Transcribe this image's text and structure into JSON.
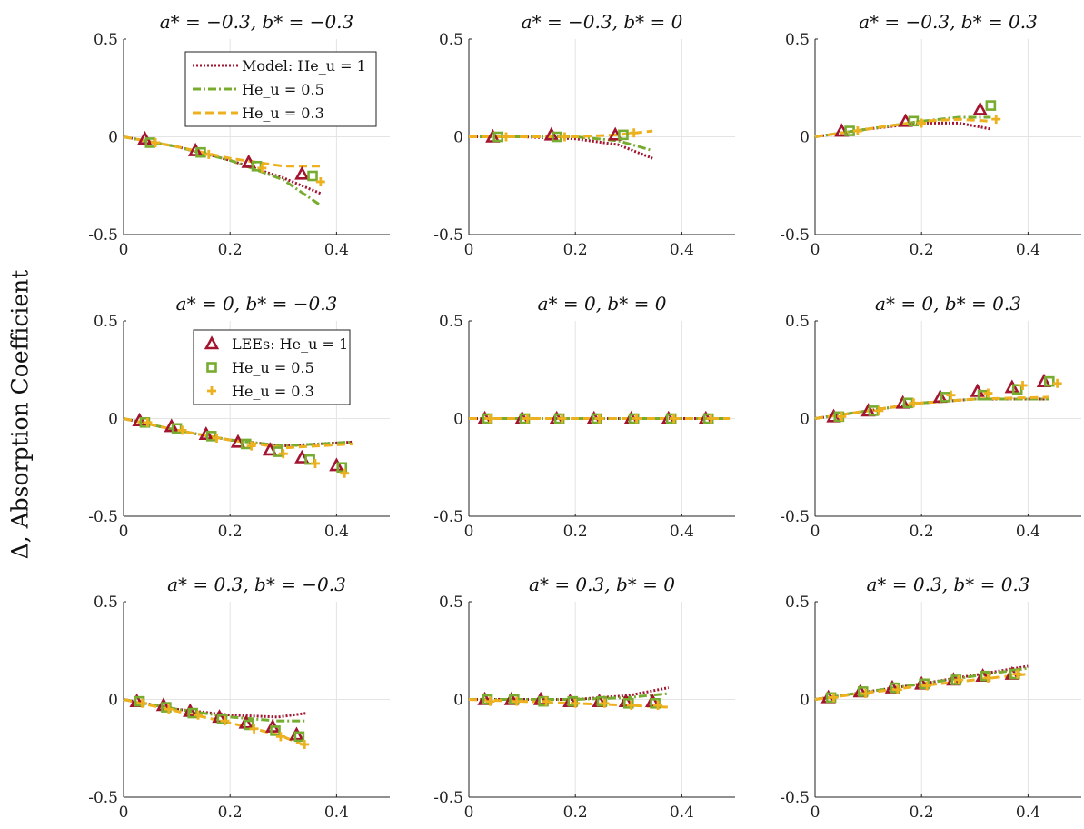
{
  "ylabel": "Δ, Absorption Coefficient",
  "legends": {
    "model": [
      "Model: He_u = 1",
      "He_u = 0.5",
      "He_u = 0.3"
    ],
    "lees": [
      "LEEs: He_u = 1",
      "He_u = 0.5",
      "He_u = 0.3"
    ]
  },
  "colors": {
    "he1": "#a2142f",
    "he05": "#77ac30",
    "he03": "#edb120"
  },
  "chart_data": [
    {
      "type": "line",
      "title": "a* = −0.3, b* = −0.3",
      "xlim": [
        0,
        0.5
      ],
      "ylim": [
        -0.5,
        0.5
      ],
      "xticks": [
        "0",
        "0.2",
        "0.4"
      ],
      "yticks": [
        "0.5",
        "0",
        "-0.5"
      ],
      "grid": true,
      "model": [
        {
          "name": "Model: He_u = 1",
          "x": [
            0,
            0.1,
            0.2,
            0.3,
            0.37
          ],
          "y": [
            0,
            -0.05,
            -0.12,
            -0.21,
            -0.29
          ]
        },
        {
          "name": "He_u = 0.5",
          "x": [
            0,
            0.1,
            0.2,
            0.3,
            0.37
          ],
          "y": [
            0,
            -0.05,
            -0.12,
            -0.22,
            -0.35
          ]
        },
        {
          "name": "He_u = 0.3",
          "x": [
            0,
            0.1,
            0.2,
            0.3,
            0.37
          ],
          "y": [
            0,
            -0.05,
            -0.11,
            -0.15,
            -0.15
          ]
        }
      ],
      "lees": [
        {
          "name": "LEEs: He_u = 1",
          "x": [
            0.04,
            0.135,
            0.235,
            0.335
          ],
          "y": [
            -0.01,
            -0.07,
            -0.13,
            -0.19
          ]
        },
        {
          "name": "He_u = 0.5",
          "x": [
            0.05,
            0.145,
            0.25,
            0.355
          ],
          "y": [
            -0.03,
            -0.08,
            -0.15,
            -0.2
          ]
        },
        {
          "name": "He_u = 0.3",
          "x": [
            0.06,
            0.16,
            0.26,
            0.37
          ],
          "y": [
            -0.03,
            -0.09,
            -0.16,
            -0.23
          ]
        }
      ]
    },
    {
      "type": "line",
      "title": "a* = −0.3, b* = 0",
      "xlim": [
        0,
        0.5
      ],
      "ylim": [
        -0.5,
        0.5
      ],
      "xticks": [
        "0",
        "0.2",
        "0.4"
      ],
      "yticks": [
        "0.5",
        "0",
        "-0.5"
      ],
      "grid": true,
      "model": [
        {
          "name": "Model: He_u = 1",
          "x": [
            0,
            0.1,
            0.2,
            0.28,
            0.345
          ],
          "y": [
            0,
            0,
            -0.01,
            -0.04,
            -0.11
          ]
        },
        {
          "name": "He_u = 0.5",
          "x": [
            0,
            0.1,
            0.2,
            0.28,
            0.345
          ],
          "y": [
            0,
            0,
            0,
            -0.02,
            -0.07
          ]
        },
        {
          "name": "He_u = 0.3",
          "x": [
            0,
            0.1,
            0.2,
            0.28,
            0.345
          ],
          "y": [
            0,
            0,
            0,
            0.01,
            0.03
          ]
        }
      ],
      "lees": [
        {
          "name": "LEEs: He_u = 1",
          "x": [
            0.045,
            0.155,
            0.275
          ],
          "y": [
            0,
            0.01,
            0.01
          ]
        },
        {
          "name": "He_u = 0.5",
          "x": [
            0.055,
            0.165,
            0.29
          ],
          "y": [
            0,
            0,
            0.01
          ]
        },
        {
          "name": "He_u = 0.3",
          "x": [
            0.07,
            0.18,
            0.31
          ],
          "y": [
            0,
            0,
            0.02
          ]
        }
      ]
    },
    {
      "type": "line",
      "title": "a* = −0.3, b* = 0.3",
      "xlim": [
        0,
        0.5
      ],
      "ylim": [
        -0.5,
        0.5
      ],
      "xticks": [
        "0",
        "0.2",
        "0.4"
      ],
      "yticks": [
        "0.5",
        "0",
        "-0.5"
      ],
      "grid": true,
      "model": [
        {
          "name": "Model: He_u = 1",
          "x": [
            0,
            0.1,
            0.2,
            0.27,
            0.33
          ],
          "y": [
            0,
            0.04,
            0.07,
            0.07,
            0.04
          ]
        },
        {
          "name": "He_u = 0.5",
          "x": [
            0,
            0.1,
            0.2,
            0.27,
            0.33
          ],
          "y": [
            0,
            0.04,
            0.08,
            0.1,
            0.1
          ]
        },
        {
          "name": "He_u = 0.3",
          "x": [
            0,
            0.1,
            0.2,
            0.27,
            0.33
          ],
          "y": [
            0,
            0.04,
            0.08,
            0.09,
            0.08
          ]
        }
      ],
      "lees": [
        {
          "name": "LEEs: He_u = 1",
          "x": [
            0.05,
            0.17,
            0.31
          ],
          "y": [
            0.03,
            0.08,
            0.14
          ]
        },
        {
          "name": "He_u = 0.5",
          "x": [
            0.065,
            0.185,
            0.33
          ],
          "y": [
            0.03,
            0.08,
            0.16
          ]
        },
        {
          "name": "He_u = 0.3",
          "x": [
            0.08,
            0.2,
            0.34
          ],
          "y": [
            0.03,
            0.07,
            0.09
          ]
        }
      ]
    },
    {
      "type": "line",
      "title": "a* = 0, b* = −0.3",
      "xlim": [
        0,
        0.5
      ],
      "ylim": [
        -0.5,
        0.5
      ],
      "xticks": [
        "0",
        "0.2",
        "0.4"
      ],
      "yticks": [
        "0.5",
        "0",
        "-0.5"
      ],
      "grid": true,
      "model": [
        {
          "name": "Model: He_u = 1",
          "x": [
            0,
            0.1,
            0.2,
            0.3,
            0.43
          ],
          "y": [
            0,
            -0.06,
            -0.11,
            -0.14,
            -0.12
          ]
        },
        {
          "name": "He_u = 0.5",
          "x": [
            0,
            0.1,
            0.2,
            0.3,
            0.43
          ],
          "y": [
            0,
            -0.06,
            -0.11,
            -0.14,
            -0.12
          ]
        },
        {
          "name": "He_u = 0.3",
          "x": [
            0,
            0.1,
            0.2,
            0.3,
            0.43
          ],
          "y": [
            0,
            -0.06,
            -0.11,
            -0.15,
            -0.13
          ]
        }
      ],
      "lees": [
        {
          "name": "LEEs: He_u = 1",
          "x": [
            0.03,
            0.09,
            0.155,
            0.215,
            0.275,
            0.335,
            0.4
          ],
          "y": [
            -0.01,
            -0.04,
            -0.08,
            -0.12,
            -0.16,
            -0.2,
            -0.24
          ]
        },
        {
          "name": "He_u = 0.5",
          "x": [
            0.04,
            0.1,
            0.165,
            0.23,
            0.29,
            0.35,
            0.41
          ],
          "y": [
            -0.02,
            -0.05,
            -0.09,
            -0.13,
            -0.17,
            -0.21,
            -0.25
          ]
        },
        {
          "name": "He_u = 0.3",
          "x": [
            0.045,
            0.11,
            0.175,
            0.24,
            0.3,
            0.36,
            0.415
          ],
          "y": [
            -0.02,
            -0.06,
            -0.1,
            -0.14,
            -0.18,
            -0.23,
            -0.28
          ]
        }
      ]
    },
    {
      "type": "line",
      "title": "a* = 0, b* = 0",
      "xlim": [
        0,
        0.5
      ],
      "ylim": [
        -0.5,
        0.5
      ],
      "xticks": [
        "0",
        "0.2",
        "0.4"
      ],
      "yticks": [
        "0.5",
        "0",
        "-0.5"
      ],
      "grid": true,
      "model": [
        {
          "name": "Model: He_u = 1",
          "x": [
            0,
            0.49
          ],
          "y": [
            0,
            0
          ]
        },
        {
          "name": "He_u = 0.5",
          "x": [
            0,
            0.49
          ],
          "y": [
            0,
            0
          ]
        },
        {
          "name": "He_u = 0.3",
          "x": [
            0,
            0.49
          ],
          "y": [
            0,
            0
          ]
        }
      ],
      "lees": [
        {
          "name": "LEEs: He_u = 1",
          "x": [
            0.03,
            0.1,
            0.165,
            0.235,
            0.305,
            0.375,
            0.445
          ],
          "y": [
            0,
            0,
            0,
            0,
            0,
            0,
            0
          ]
        },
        {
          "name": "He_u = 0.5",
          "x": [
            0.035,
            0.105,
            0.17,
            0.24,
            0.31,
            0.38,
            0.45
          ],
          "y": [
            0,
            0,
            0,
            0,
            0,
            0,
            0
          ]
        },
        {
          "name": "He_u = 0.3",
          "x": [
            0.04,
            0.11,
            0.175,
            0.245,
            0.315,
            0.385,
            0.455
          ],
          "y": [
            0,
            0,
            0,
            0,
            0,
            0,
            0
          ]
        }
      ]
    },
    {
      "type": "line",
      "title": "a* = 0, b* = 0.3",
      "xlim": [
        0,
        0.5
      ],
      "ylim": [
        -0.5,
        0.5
      ],
      "xticks": [
        "0",
        "0.2",
        "0.4"
      ],
      "yticks": [
        "0.5",
        "0",
        "-0.5"
      ],
      "grid": true,
      "model": [
        {
          "name": "Model: He_u = 1",
          "x": [
            0,
            0.1,
            0.2,
            0.3,
            0.44
          ],
          "y": [
            0,
            0.04,
            0.08,
            0.1,
            0.1
          ]
        },
        {
          "name": "He_u = 0.5",
          "x": [
            0,
            0.1,
            0.2,
            0.3,
            0.44
          ],
          "y": [
            0,
            0.04,
            0.08,
            0.1,
            0.1
          ]
        },
        {
          "name": "He_u = 0.3",
          "x": [
            0,
            0.1,
            0.2,
            0.3,
            0.44
          ],
          "y": [
            0,
            0.04,
            0.08,
            0.1,
            0.11
          ]
        }
      ],
      "lees": [
        {
          "name": "LEEs: He_u = 1",
          "x": [
            0.035,
            0.1,
            0.165,
            0.235,
            0.305,
            0.37,
            0.43
          ],
          "y": [
            0.01,
            0.04,
            0.08,
            0.11,
            0.14,
            0.16,
            0.19
          ]
        },
        {
          "name": "He_u = 0.5",
          "x": [
            0.045,
            0.11,
            0.175,
            0.245,
            0.315,
            0.38,
            0.44
          ],
          "y": [
            0.01,
            0.04,
            0.08,
            0.11,
            0.12,
            0.15,
            0.19
          ]
        },
        {
          "name": "He_u = 0.3",
          "x": [
            0.05,
            0.12,
            0.185,
            0.255,
            0.325,
            0.39,
            0.455
          ],
          "y": [
            0.01,
            0.04,
            0.08,
            0.12,
            0.13,
            0.17,
            0.18
          ]
        }
      ]
    },
    {
      "type": "line",
      "title": "a* = 0.3, b* = −0.3",
      "xlim": [
        0,
        0.5
      ],
      "ylim": [
        -0.5,
        0.5
      ],
      "xticks": [
        "0",
        "0.2",
        "0.4"
      ],
      "yticks": [
        "0.5",
        "0",
        "-0.5"
      ],
      "grid": true,
      "model": [
        {
          "name": "Model: He_u = 1",
          "x": [
            0,
            0.1,
            0.2,
            0.29,
            0.345
          ],
          "y": [
            0,
            -0.05,
            -0.08,
            -0.09,
            -0.07
          ]
        },
        {
          "name": "He_u = 0.5",
          "x": [
            0,
            0.1,
            0.2,
            0.29,
            0.345
          ],
          "y": [
            0,
            -0.05,
            -0.09,
            -0.11,
            -0.11
          ]
        },
        {
          "name": "He_u = 0.3",
          "x": [
            0,
            0.1,
            0.2,
            0.29,
            0.345
          ],
          "y": [
            0,
            -0.06,
            -0.12,
            -0.18,
            -0.24
          ]
        }
      ],
      "lees": [
        {
          "name": "LEEs: He_u = 1",
          "x": [
            0.025,
            0.075,
            0.125,
            0.18,
            0.23,
            0.28,
            0.325
          ],
          "y": [
            -0.01,
            -0.03,
            -0.06,
            -0.09,
            -0.12,
            -0.14,
            -0.18
          ]
        },
        {
          "name": "He_u = 0.5",
          "x": [
            0.03,
            0.08,
            0.13,
            0.185,
            0.235,
            0.285,
            0.33
          ],
          "y": [
            -0.01,
            -0.04,
            -0.07,
            -0.1,
            -0.13,
            -0.16,
            -0.19
          ]
        },
        {
          "name": "He_u = 0.3",
          "x": [
            0.035,
            0.085,
            0.14,
            0.19,
            0.245,
            0.295,
            0.34
          ],
          "y": [
            -0.02,
            -0.05,
            -0.08,
            -0.11,
            -0.15,
            -0.19,
            -0.23
          ]
        }
      ]
    },
    {
      "type": "line",
      "title": "a* = 0.3, b* = 0",
      "xlim": [
        0,
        0.5
      ],
      "ylim": [
        -0.5,
        0.5
      ],
      "xticks": [
        "0",
        "0.2",
        "0.4"
      ],
      "yticks": [
        "0.5",
        "0",
        "-0.5"
      ],
      "grid": true,
      "model": [
        {
          "name": "Model: He_u = 1",
          "x": [
            0,
            0.1,
            0.2,
            0.3,
            0.375
          ],
          "y": [
            0,
            0,
            0,
            0.02,
            0.06
          ]
        },
        {
          "name": "He_u = 0.5",
          "x": [
            0,
            0.1,
            0.2,
            0.3,
            0.375
          ],
          "y": [
            0,
            0,
            0,
            0.01,
            0.03
          ]
        },
        {
          "name": "He_u = 0.3",
          "x": [
            0,
            0.1,
            0.2,
            0.3,
            0.375
          ],
          "y": [
            0,
            -0.01,
            -0.02,
            -0.03,
            -0.04
          ]
        }
      ],
      "lees": [
        {
          "name": "LEEs: He_u = 1",
          "x": [
            0.03,
            0.08,
            0.135,
            0.19,
            0.245,
            0.295,
            0.345
          ],
          "y": [
            0,
            0,
            0,
            -0.01,
            -0.01,
            -0.01,
            -0.01
          ]
        },
        {
          "name": "He_u = 0.5",
          "x": [
            0.035,
            0.085,
            0.14,
            0.195,
            0.25,
            0.3,
            0.35
          ],
          "y": [
            0,
            0,
            -0.01,
            -0.01,
            -0.01,
            -0.02,
            -0.02
          ]
        },
        {
          "name": "He_u = 0.3",
          "x": [
            0.04,
            0.09,
            0.145,
            0.2,
            0.255,
            0.305,
            0.355
          ],
          "y": [
            -0.01,
            -0.01,
            -0.01,
            -0.02,
            -0.02,
            -0.03,
            -0.03
          ]
        }
      ]
    },
    {
      "type": "line",
      "title": "a* = 0.3, b* = 0.3",
      "xlim": [
        0,
        0.5
      ],
      "ylim": [
        -0.5,
        0.5
      ],
      "xticks": [
        "0",
        "0.2",
        "0.4"
      ],
      "yticks": [
        "0.5",
        "0",
        "-0.5"
      ],
      "grid": true,
      "model": [
        {
          "name": "Model: He_u = 1",
          "x": [
            0,
            0.2,
            0.4
          ],
          "y": [
            0,
            0.08,
            0.17
          ]
        },
        {
          "name": "He_u = 0.5",
          "x": [
            0,
            0.2,
            0.4
          ],
          "y": [
            0,
            0.08,
            0.16
          ]
        },
        {
          "name": "He_u = 0.3",
          "x": [
            0,
            0.2,
            0.4
          ],
          "y": [
            0,
            0.07,
            0.13
          ]
        }
      ],
      "lees": [
        {
          "name": "LEEs: He_u = 1",
          "x": [
            0.025,
            0.085,
            0.145,
            0.2,
            0.26,
            0.315,
            0.37
          ],
          "y": [
            0.01,
            0.04,
            0.06,
            0.08,
            0.1,
            0.12,
            0.13
          ]
        },
        {
          "name": "He_u = 0.5",
          "x": [
            0.03,
            0.09,
            0.15,
            0.205,
            0.265,
            0.32,
            0.375
          ],
          "y": [
            0.01,
            0.04,
            0.06,
            0.08,
            0.1,
            0.12,
            0.13
          ]
        },
        {
          "name": "He_u = 0.3",
          "x": [
            0.035,
            0.095,
            0.155,
            0.21,
            0.27,
            0.325,
            0.38
          ],
          "y": [
            0.01,
            0.03,
            0.05,
            0.07,
            0.1,
            0.11,
            0.13
          ]
        }
      ]
    }
  ]
}
